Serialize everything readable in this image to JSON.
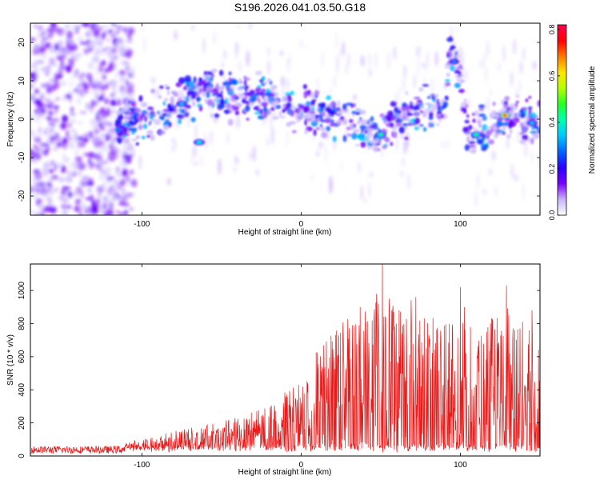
{
  "title": "S196.2026.041.03.50.G18",
  "colors": {
    "snr_line": "#e81b1b",
    "axis": "#000000"
  },
  "chart_data": [
    {
      "type": "heatmap",
      "title": "S196.2026.041.03.50.G18",
      "xlabel": "Height of straight line (km)",
      "ylabel": "Frequency (Hz)",
      "xlim": [
        -170,
        150
      ],
      "ylim": [
        -25,
        25
      ],
      "x_ticks": [
        -100,
        0,
        100
      ],
      "x_tick_labels": [
        "-100",
        "0",
        "100"
      ],
      "y_ticks": [
        -20,
        -10,
        0,
        10,
        20
      ],
      "y_tick_labels": [
        "-20",
        "-10",
        "0",
        "10",
        "20"
      ],
      "colorbar": {
        "label": "Normalized spectral amplitude",
        "range": [
          0.0,
          0.82
        ],
        "ticks": [
          0.0,
          0.2,
          0.4,
          0.6,
          0.8
        ],
        "tick_labels": [
          "0.0",
          "0.2",
          "0.4",
          "0.6",
          "0.8"
        ],
        "colormap": [
          "#ffffff",
          "#c8b4ff",
          "#7a00ff",
          "#2a00ff",
          "#0064ff",
          "#00c8ff",
          "#00ffb4",
          "#28ff28",
          "#b4ff00",
          "#ffe600",
          "#ff7a00",
          "#ff0000",
          "#ff0050"
        ]
      },
      "ridge": [
        {
          "x": -170,
          "f": 2
        },
        {
          "x": -110,
          "f": -2
        },
        {
          "x": -90,
          "f": 2
        },
        {
          "x": -80,
          "f": 4
        },
        {
          "x": -60,
          "f": 8
        },
        {
          "x": -50,
          "f": 6
        },
        {
          "x": -30,
          "f": 6
        },
        {
          "x": -20,
          "f": 5
        },
        {
          "x": 0,
          "f": 2
        },
        {
          "x": 20,
          "f": 1
        },
        {
          "x": 40,
          "f": -2
        },
        {
          "x": 50,
          "f": -3
        },
        {
          "x": 60,
          "f": 0
        },
        {
          "x": 80,
          "f": 3
        },
        {
          "x": 90,
          "f": 2
        },
        {
          "x": 93,
          "f": 17
        },
        {
          "x": 100,
          "f": 12
        },
        {
          "x": 105,
          "f": -5
        },
        {
          "x": 120,
          "f": -1
        },
        {
          "x": 130,
          "f": 1
        },
        {
          "x": 140,
          "f": 0
        },
        {
          "x": 150,
          "f": -2
        }
      ],
      "hotspots": [
        {
          "x": 128,
          "f": 1,
          "amp": 0.8
        },
        {
          "x": 50,
          "f": -4,
          "amp": 0.45
        },
        {
          "x": -64,
          "f": -6,
          "amp": 0.4
        },
        {
          "x": 110,
          "f": -4,
          "amp": 0.45
        },
        {
          "x": 145,
          "f": -1,
          "amp": 0.35
        },
        {
          "x": 96,
          "f": 15,
          "amp": 0.3
        },
        {
          "x": -75,
          "f": 4,
          "amp": 0.35
        }
      ]
    },
    {
      "type": "line",
      "xlabel": "Height of straight line (km)",
      "ylabel": "SNR (10 * v/v)",
      "xlim": [
        -170,
        150
      ],
      "ylim": [
        0,
        1160
      ],
      "x_ticks": [
        -100,
        0,
        100
      ],
      "x_tick_labels": [
        "-100",
        "0",
        "100"
      ],
      "y_ticks": [
        0,
        200,
        400,
        600,
        800,
        1000
      ],
      "y_tick_labels": [
        "0",
        "200",
        "400",
        "600",
        "800",
        "1000"
      ],
      "envelope": [
        {
          "x": -170,
          "v": 45
        },
        {
          "x": -120,
          "v": 45
        },
        {
          "x": -100,
          "v": 60
        },
        {
          "x": -80,
          "v": 130
        },
        {
          "x": -50,
          "v": 160
        },
        {
          "x": -40,
          "v": 220
        },
        {
          "x": -20,
          "v": 280
        },
        {
          "x": 0,
          "v": 420
        },
        {
          "x": 10,
          "v": 600
        },
        {
          "x": 20,
          "v": 780
        },
        {
          "x": 30,
          "v": 820
        },
        {
          "x": 40,
          "v": 900
        },
        {
          "x": 50,
          "v": 1000
        },
        {
          "x": 60,
          "v": 880
        },
        {
          "x": 70,
          "v": 950
        },
        {
          "x": 80,
          "v": 820
        },
        {
          "x": 90,
          "v": 780
        },
        {
          "x": 100,
          "v": 920
        },
        {
          "x": 110,
          "v": 780
        },
        {
          "x": 120,
          "v": 800
        },
        {
          "x": 130,
          "v": 900
        },
        {
          "x": 140,
          "v": 820
        },
        {
          "x": 150,
          "v": 600
        }
      ],
      "peaks": [
        {
          "x": 51,
          "v": 1160
        },
        {
          "x": 72,
          "v": 960
        },
        {
          "x": 100,
          "v": 1020
        },
        {
          "x": 129,
          "v": 1030
        },
        {
          "x": 145,
          "v": 880
        },
        {
          "x": 37,
          "v": 900
        },
        {
          "x": 57,
          "v": 880
        }
      ]
    }
  ]
}
